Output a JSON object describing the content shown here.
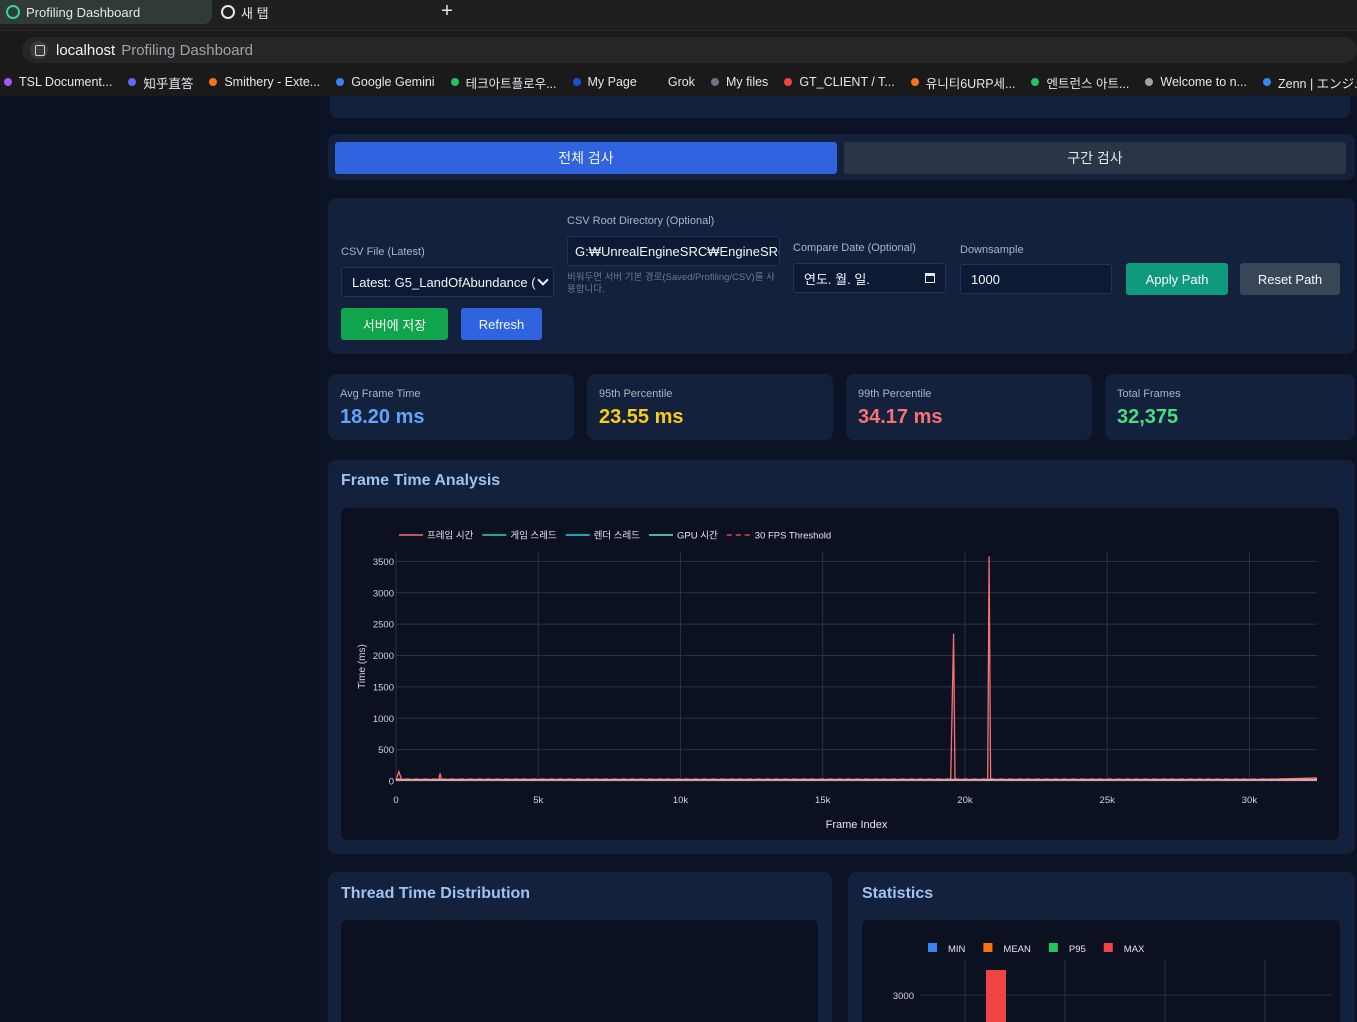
{
  "browser": {
    "tabs": [
      {
        "label": "Profiling Dashboard",
        "active": true
      },
      {
        "label": "새 탭",
        "active": false
      }
    ],
    "new_tab_symbol": "+",
    "url_host": "localhost",
    "url_title": "Profiling Dashboard",
    "bookmarks": [
      {
        "label": "TSL Document...",
        "color": "#a855f7"
      },
      {
        "label": "知乎直答",
        "color": "#6366f1"
      },
      {
        "label": "Smithery - Exte...",
        "color": "#f97316"
      },
      {
        "label": "Google Gemini",
        "color": "#3b82f6"
      },
      {
        "label": "테크아트플로우...",
        "color": "#22c55e"
      },
      {
        "label": "My Page",
        "color": "#1d4ed8"
      },
      {
        "label": "Grok",
        "color": "#1a1a1a"
      },
      {
        "label": "My files",
        "color": "#6b7280"
      },
      {
        "label": "GT_CLIENT / T...",
        "color": "#ef4444"
      },
      {
        "label": "유니티6URP세...",
        "color": "#f97316"
      },
      {
        "label": "엔트런스 아트...",
        "color": "#22c55e"
      },
      {
        "label": "Welcome to n...",
        "color": "#9ca3af"
      },
      {
        "label": "Zenn | エンジ...",
        "color": "#3b82f6"
      }
    ]
  },
  "modes": {
    "full": "전체 검사",
    "range": "구간 검사"
  },
  "controls": {
    "csv_file_label": "CSV File (Latest)",
    "csv_file_value": "Latest: G5_LandOfAbundance (",
    "csv_root_label": "CSV Root Directory (Optional)",
    "csv_root_value": "G:₩UnrealEngineSRC₩EngineSRC₩",
    "csv_root_hint": "비워두면 서버 기본 경로(Saved/Profiling/CSV)를 사용합니다.",
    "compare_label": "Compare Date (Optional)",
    "compare_value": "연도. 월. 일.",
    "downsample_label": "Downsample",
    "downsample_value": "1000",
    "apply": "Apply Path",
    "reset": "Reset Path",
    "save": "서버에 저장",
    "refresh": "Refresh"
  },
  "stats": [
    {
      "title": "Avg Frame Time",
      "value": "18.20 ms",
      "color": "#60a5fa"
    },
    {
      "title": "95th Percentile",
      "value": "23.55 ms",
      "color": "#facc15"
    },
    {
      "title": "99th Percentile",
      "value": "34.17 ms",
      "color": "#f87171"
    },
    {
      "title": "Total Frames",
      "value": "32,375",
      "color": "#4ade80"
    }
  ],
  "frame_section": {
    "title": "Frame Time Analysis"
  },
  "thread_section": {
    "title": "Thread Time Distribution"
  },
  "statistics_section": {
    "title": "Statistics"
  },
  "chart_data": [
    {
      "type": "line",
      "xlabel": "Frame Index",
      "ylabel": "Time (ms)",
      "xlim": [
        0,
        32375
      ],
      "ylim": [
        0,
        3650
      ],
      "x_ticks": [
        0,
        5000,
        10000,
        15000,
        20000,
        25000,
        30000
      ],
      "x_tick_labels": [
        "0",
        "5k",
        "10k",
        "15k",
        "20k",
        "25k",
        "30k"
      ],
      "y_ticks": [
        0,
        500,
        1000,
        1500,
        2000,
        2500,
        3000,
        3500
      ],
      "grid": true,
      "legend_position": "top-left",
      "series": [
        {
          "name": "프레임 시간",
          "color": "#f87171",
          "dash": false,
          "x": [
            0,
            100,
            200,
            300,
            1500,
            1550,
            1600,
            5000,
            10000,
            15000,
            19500,
            19600,
            19650,
            19700,
            20800,
            20850,
            20900,
            21000,
            25000,
            30000,
            32375
          ],
          "y": [
            18,
            150,
            20,
            18,
            18,
            120,
            18,
            20,
            18,
            22,
            18,
            2350,
            18,
            18,
            18,
            3580,
            18,
            20,
            22,
            18,
            50
          ]
        },
        {
          "name": "게임 스레드",
          "color": "#2dd4bf",
          "dash": false,
          "x": [
            0,
            32375
          ],
          "y": [
            12,
            12
          ]
        },
        {
          "name": "렌더 스레드",
          "color": "#22d3ee",
          "dash": false,
          "x": [
            0,
            32375
          ],
          "y": [
            10,
            10
          ]
        },
        {
          "name": "GPU 시간",
          "color": "#5eead4",
          "dash": false,
          "x": [
            0,
            32375
          ],
          "y": [
            14,
            14
          ]
        },
        {
          "name": "30 FPS Threshold",
          "color": "#ef4444",
          "dash": true,
          "x": [
            0,
            32375
          ],
          "y": [
            33.3,
            33.3
          ]
        }
      ]
    },
    {
      "type": "bar",
      "legend_position": "top",
      "series": [
        {
          "name": "MIN",
          "color": "#3b82f6"
        },
        {
          "name": "MEAN",
          "color": "#f97316"
        },
        {
          "name": "P95",
          "color": "#22c55e"
        },
        {
          "name": "MAX",
          "color": "#ef4444",
          "values": [
            3580
          ]
        }
      ],
      "y_ticks_visible": [
        3000
      ]
    }
  ]
}
